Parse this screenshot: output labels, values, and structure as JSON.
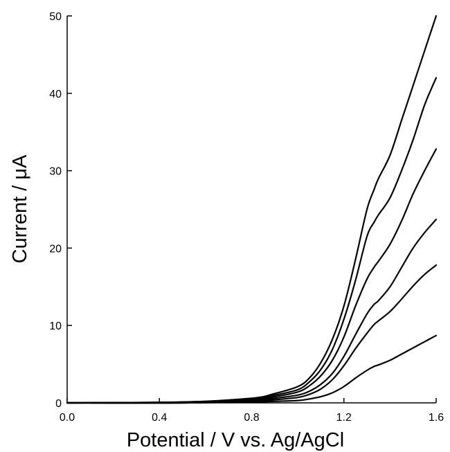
{
  "chart_data": {
    "type": "line",
    "title": "",
    "xlabel": "Potential / V vs. Ag/AgCl",
    "ylabel": "Current / μA",
    "xlim": [
      0.0,
      1.6
    ],
    "ylim": [
      0,
      50
    ],
    "x_ticks": [
      0.0,
      0.4,
      0.8,
      1.2,
      1.6
    ],
    "x_tick_labels": [
      "0.0",
      "0.4",
      "0.8",
      "1.2",
      "1.6"
    ],
    "y_ticks": [
      0,
      10,
      20,
      30,
      40,
      50
    ],
    "y_tick_labels": [
      "0",
      "10",
      "20",
      "30",
      "40",
      "50"
    ],
    "grid": false,
    "legend": "none",
    "line_color": "#000000",
    "series": [
      {
        "x": [
          0.0,
          0.5,
          0.8,
          0.9,
          1.0,
          1.05,
          1.1,
          1.15,
          1.2,
          1.25,
          1.3,
          1.33,
          1.35,
          1.4,
          1.45,
          1.5,
          1.55,
          1.6
        ],
        "values": [
          0.0,
          0.0,
          0.1,
          0.2,
          0.3,
          0.5,
          0.8,
          1.3,
          2.1,
          3.2,
          4.2,
          4.7,
          4.9,
          5.5,
          6.3,
          7.1,
          7.9,
          8.7
        ]
      },
      {
        "x": [
          0.0,
          0.5,
          0.8,
          0.9,
          1.0,
          1.05,
          1.1,
          1.15,
          1.2,
          1.25,
          1.3,
          1.33,
          1.35,
          1.4,
          1.45,
          1.5,
          1.55,
          1.6
        ],
        "values": [
          0.0,
          0.0,
          0.2,
          0.4,
          0.7,
          1.1,
          1.8,
          3.0,
          4.8,
          7.0,
          9.0,
          10.1,
          10.6,
          11.8,
          13.4,
          15.1,
          16.6,
          17.8
        ]
      },
      {
        "x": [
          0.0,
          0.5,
          0.8,
          0.9,
          1.0,
          1.05,
          1.1,
          1.15,
          1.2,
          1.25,
          1.3,
          1.33,
          1.35,
          1.4,
          1.45,
          1.5,
          1.55,
          1.6
        ],
        "values": [
          0.0,
          0.0,
          0.3,
          0.6,
          1.0,
          1.5,
          2.4,
          3.8,
          6.0,
          8.8,
          11.5,
          12.7,
          13.2,
          15.0,
          17.5,
          20.0,
          22.0,
          23.7
        ]
      },
      {
        "x": [
          0.0,
          0.5,
          0.8,
          0.9,
          1.0,
          1.05,
          1.1,
          1.15,
          1.2,
          1.25,
          1.3,
          1.33,
          1.35,
          1.4,
          1.45,
          1.5,
          1.55,
          1.6
        ],
        "values": [
          0.0,
          0.1,
          0.4,
          0.8,
          1.4,
          2.2,
          3.5,
          5.5,
          8.5,
          12.5,
          16.0,
          17.5,
          18.3,
          20.5,
          23.5,
          27.0,
          30.0,
          32.8
        ]
      },
      {
        "x": [
          0.0,
          0.5,
          0.8,
          0.9,
          1.0,
          1.05,
          1.1,
          1.15,
          1.2,
          1.25,
          1.3,
          1.33,
          1.35,
          1.4,
          1.45,
          1.5,
          1.55,
          1.6
        ],
        "values": [
          0.0,
          0.1,
          0.5,
          1.0,
          1.7,
          2.7,
          4.3,
          6.9,
          10.8,
          15.8,
          21.5,
          23.3,
          24.3,
          26.5,
          30.0,
          34.0,
          38.5,
          42.0
        ]
      },
      {
        "x": [
          0.0,
          0.5,
          0.8,
          0.9,
          1.0,
          1.05,
          1.1,
          1.15,
          1.2,
          1.25,
          1.3,
          1.33,
          1.35,
          1.4,
          1.45,
          1.5,
          1.55,
          1.6
        ],
        "values": [
          0.0,
          0.1,
          0.6,
          1.2,
          2.1,
          3.2,
          5.2,
          8.2,
          12.5,
          18.5,
          25.0,
          27.5,
          29.0,
          32.0,
          36.5,
          41.0,
          45.5,
          50.0
        ]
      }
    ]
  }
}
